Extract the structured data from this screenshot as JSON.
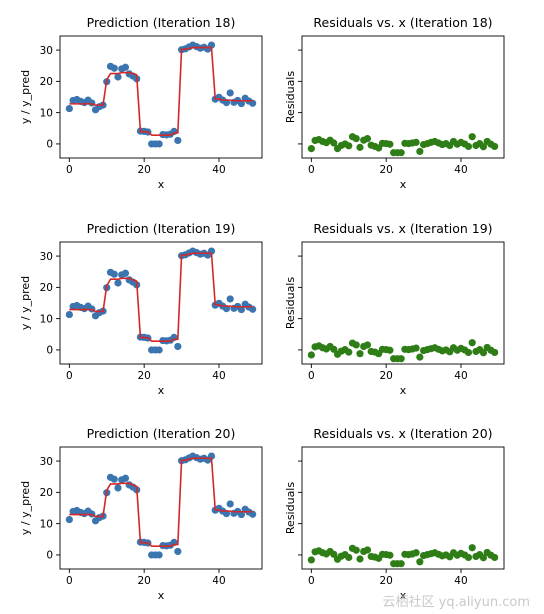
{
  "colors": {
    "points": "#3b75af",
    "prediction_line": "#d62728",
    "residual_points": "#2e7d16",
    "axis": "#000000",
    "background": "#ffffff"
  },
  "watermark": "云栖社区 yq.aliyun.com",
  "chart_data": [
    {
      "type": "line",
      "title": "Prediction (Iteration 18)",
      "xlabel": "x",
      "ylabel": "y / y_pred",
      "xlim": [
        -2.5,
        51.5
      ],
      "ylim": [
        -4.5,
        34.5
      ],
      "xticks": [
        0,
        20,
        40
      ],
      "yticks": [
        0,
        10,
        20,
        30
      ],
      "grid": false,
      "x": [
        0,
        1,
        2,
        3,
        4,
        5,
        6,
        7,
        8,
        9,
        10,
        11,
        12,
        13,
        14,
        15,
        16,
        17,
        18,
        19,
        20,
        21,
        22,
        23,
        24,
        25,
        26,
        27,
        28,
        29,
        30,
        31,
        32,
        33,
        34,
        35,
        36,
        37,
        38,
        39,
        40,
        41,
        42,
        43,
        44,
        45,
        46,
        47,
        48,
        49
      ],
      "series": [
        {
          "role": "scatter",
          "values": [
            11.3,
            13.9,
            14.2,
            13.6,
            13.2,
            14.0,
            13.1,
            10.9,
            11.9,
            12.4,
            19.9,
            24.8,
            24.2,
            21.4,
            24.0,
            24.5,
            22.4,
            21.7,
            20.8,
            4.1,
            4.0,
            3.8,
            0.0,
            0.0,
            0.0,
            3.0,
            2.9,
            3.1,
            4.0,
            1.1,
            30.1,
            30.4,
            31.0,
            31.6,
            31.1,
            30.6,
            30.9,
            30.3,
            31.6,
            14.3,
            14.9,
            14.0,
            13.2,
            16.3,
            13.3,
            13.9,
            12.9,
            14.6,
            13.7,
            13.0
          ]
        },
        {
          "role": "prediction",
          "values": [
            12.8,
            12.8,
            12.8,
            12.8,
            12.8,
            12.8,
            12.8,
            12.4,
            12.4,
            12.4,
            20.5,
            22.5,
            22.5,
            22.5,
            22.8,
            22.8,
            22.8,
            22.5,
            22.1,
            3.9,
            3.9,
            3.9,
            2.8,
            2.8,
            2.8,
            2.8,
            2.8,
            2.8,
            3.5,
            3.5,
            30.3,
            30.3,
            30.5,
            30.8,
            30.8,
            30.8,
            30.8,
            30.8,
            30.8,
            14.4,
            14.4,
            14.0,
            14.0,
            14.0,
            13.8,
            13.8,
            13.8,
            13.8,
            13.8,
            13.8
          ]
        }
      ]
    },
    {
      "type": "scatter",
      "title": "Residuals vs. x (Iteration 18)",
      "xlabel": "x",
      "ylabel": "Residuals",
      "xlim": [
        -2.5,
        51.5
      ],
      "ylim": [
        -4.5,
        34.5
      ],
      "xticks": [
        0,
        20,
        40
      ],
      "ytick_labels_visible": false,
      "grid": false,
      "x": [
        0,
        1,
        2,
        3,
        4,
        5,
        6,
        7,
        8,
        9,
        10,
        11,
        12,
        13,
        14,
        15,
        16,
        17,
        18,
        19,
        20,
        21,
        22,
        23,
        24,
        25,
        26,
        27,
        28,
        29,
        30,
        31,
        32,
        33,
        34,
        35,
        36,
        37,
        38,
        39,
        40,
        41,
        42,
        43,
        44,
        45,
        46,
        47,
        48,
        49
      ],
      "values": [
        -1.5,
        1.1,
        1.4,
        0.8,
        0.4,
        1.2,
        0.3,
        -1.5,
        -0.5,
        0.0,
        -0.6,
        2.3,
        1.7,
        -1.1,
        1.2,
        1.7,
        -0.4,
        -0.8,
        -1.3,
        0.2,
        0.1,
        -0.1,
        -2.8,
        -2.8,
        -2.8,
        0.2,
        0.1,
        0.3,
        0.5,
        -2.4,
        -0.2,
        0.1,
        0.5,
        0.8,
        0.3,
        -0.2,
        0.1,
        -0.5,
        0.8,
        -0.1,
        0.5,
        0.0,
        -0.8,
        2.3,
        -0.5,
        0.1,
        -0.9,
        0.8,
        -0.1,
        -0.8
      ]
    },
    {
      "type": "line",
      "title": "Prediction (Iteration 19)",
      "xlabel": "x",
      "ylabel": "y / y_pred",
      "xlim": [
        -2.5,
        51.5
      ],
      "ylim": [
        -4.5,
        34.5
      ],
      "xticks": [
        0,
        20,
        40
      ],
      "yticks": [
        0,
        10,
        20,
        30
      ],
      "grid": false,
      "x": [
        0,
        1,
        2,
        3,
        4,
        5,
        6,
        7,
        8,
        9,
        10,
        11,
        12,
        13,
        14,
        15,
        16,
        17,
        18,
        19,
        20,
        21,
        22,
        23,
        24,
        25,
        26,
        27,
        28,
        29,
        30,
        31,
        32,
        33,
        34,
        35,
        36,
        37,
        38,
        39,
        40,
        41,
        42,
        43,
        44,
        45,
        46,
        47,
        48,
        49
      ],
      "series": [
        {
          "role": "scatter",
          "values": [
            11.3,
            13.9,
            14.2,
            13.6,
            13.2,
            14.0,
            13.1,
            10.9,
            11.9,
            12.4,
            19.9,
            24.8,
            24.2,
            21.4,
            24.0,
            24.5,
            22.4,
            21.7,
            20.8,
            4.1,
            4.0,
            3.8,
            0.0,
            0.0,
            0.0,
            3.0,
            2.9,
            3.1,
            4.0,
            1.1,
            30.1,
            30.4,
            31.0,
            31.6,
            31.1,
            30.6,
            30.9,
            30.3,
            31.6,
            14.3,
            14.9,
            14.0,
            13.2,
            16.3,
            13.3,
            13.9,
            12.9,
            14.6,
            13.7,
            13.0
          ]
        },
        {
          "role": "prediction",
          "values": [
            12.9,
            12.9,
            12.9,
            12.9,
            12.9,
            12.9,
            12.9,
            12.3,
            12.3,
            12.3,
            20.6,
            22.6,
            22.6,
            22.6,
            22.9,
            22.9,
            22.9,
            22.4,
            22.0,
            3.9,
            3.9,
            3.9,
            2.8,
            2.8,
            2.8,
            2.8,
            2.8,
            2.8,
            3.4,
            3.4,
            30.3,
            30.3,
            30.6,
            30.9,
            30.9,
            30.9,
            30.9,
            30.9,
            30.9,
            14.4,
            14.4,
            14.0,
            14.0,
            14.0,
            13.8,
            13.8,
            13.8,
            13.8,
            13.8,
            13.8
          ]
        }
      ]
    },
    {
      "type": "scatter",
      "title": "Residuals vs. x (Iteration 19)",
      "xlabel": "x",
      "ylabel": "Residuals",
      "xlim": [
        -2.5,
        51.5
      ],
      "ylim": [
        -4.5,
        34.5
      ],
      "xticks": [
        0,
        20,
        40
      ],
      "ytick_labels_visible": false,
      "grid": false,
      "x": [
        0,
        1,
        2,
        3,
        4,
        5,
        6,
        7,
        8,
        9,
        10,
        11,
        12,
        13,
        14,
        15,
        16,
        17,
        18,
        19,
        20,
        21,
        22,
        23,
        24,
        25,
        26,
        27,
        28,
        29,
        30,
        31,
        32,
        33,
        34,
        35,
        36,
        37,
        38,
        39,
        40,
        41,
        42,
        43,
        44,
        45,
        46,
        47,
        48,
        49
      ],
      "values": [
        -1.6,
        1.0,
        1.3,
        0.7,
        0.3,
        1.1,
        0.2,
        -1.4,
        -0.4,
        0.1,
        -0.7,
        2.2,
        1.6,
        -1.2,
        1.1,
        1.6,
        -0.5,
        -0.7,
        -1.2,
        0.2,
        0.1,
        -0.1,
        -2.8,
        -2.8,
        -2.8,
        0.2,
        0.1,
        0.3,
        0.6,
        -2.3,
        -0.2,
        0.1,
        0.4,
        0.7,
        0.2,
        -0.3,
        0.0,
        -0.6,
        0.7,
        -0.1,
        0.5,
        0.0,
        -0.8,
        2.3,
        -0.5,
        0.1,
        -0.9,
        0.8,
        -0.1,
        -0.8
      ]
    },
    {
      "type": "line",
      "title": "Prediction (Iteration 20)",
      "xlabel": "x",
      "ylabel": "y / y_pred",
      "xlim": [
        -2.5,
        51.5
      ],
      "ylim": [
        -4.5,
        34.5
      ],
      "xticks": [
        0,
        20,
        40
      ],
      "yticks": [
        0,
        10,
        20,
        30
      ],
      "grid": false,
      "x": [
        0,
        1,
        2,
        3,
        4,
        5,
        6,
        7,
        8,
        9,
        10,
        11,
        12,
        13,
        14,
        15,
        16,
        17,
        18,
        19,
        20,
        21,
        22,
        23,
        24,
        25,
        26,
        27,
        28,
        29,
        30,
        31,
        32,
        33,
        34,
        35,
        36,
        37,
        38,
        39,
        40,
        41,
        42,
        43,
        44,
        45,
        46,
        47,
        48,
        49
      ],
      "series": [
        {
          "role": "scatter",
          "values": [
            11.3,
            13.9,
            14.2,
            13.6,
            13.2,
            14.0,
            13.1,
            10.9,
            11.9,
            12.4,
            19.9,
            24.8,
            24.2,
            21.4,
            24.0,
            24.5,
            22.4,
            21.7,
            20.8,
            4.1,
            4.0,
            3.8,
            0.0,
            0.0,
            0.0,
            3.0,
            2.9,
            3.1,
            4.0,
            1.1,
            30.1,
            30.4,
            31.0,
            31.6,
            31.1,
            30.6,
            30.9,
            30.3,
            31.6,
            14.3,
            14.9,
            14.0,
            13.2,
            16.3,
            13.3,
            13.9,
            12.9,
            14.6,
            13.7,
            13.0
          ]
        },
        {
          "role": "prediction",
          "values": [
            12.9,
            12.9,
            12.9,
            12.9,
            12.9,
            12.9,
            12.9,
            12.3,
            12.3,
            12.3,
            20.7,
            22.7,
            22.7,
            22.7,
            22.9,
            22.9,
            22.9,
            22.4,
            21.9,
            3.9,
            3.9,
            3.9,
            2.8,
            2.8,
            2.8,
            2.8,
            2.8,
            2.8,
            3.3,
            3.3,
            30.3,
            30.3,
            30.6,
            30.9,
            30.9,
            30.9,
            30.9,
            30.9,
            30.9,
            14.4,
            14.4,
            14.0,
            14.0,
            14.0,
            13.8,
            13.8,
            13.8,
            13.8,
            13.8,
            13.8
          ]
        }
      ]
    },
    {
      "type": "scatter",
      "title": "Residuals vs. x (Iteration 20)",
      "xlabel": "x",
      "ylabel": "Residuals",
      "xlim": [
        -2.5,
        51.5
      ],
      "ylim": [
        -4.5,
        34.5
      ],
      "xticks": [
        0,
        20,
        40
      ],
      "ytick_labels_visible": false,
      "grid": false,
      "x": [
        0,
        1,
        2,
        3,
        4,
        5,
        6,
        7,
        8,
        9,
        10,
        11,
        12,
        13,
        14,
        15,
        16,
        17,
        18,
        19,
        20,
        21,
        22,
        23,
        24,
        25,
        26,
        27,
        28,
        29,
        30,
        31,
        32,
        33,
        34,
        35,
        36,
        37,
        38,
        39,
        40,
        41,
        42,
        43,
        44,
        45,
        46,
        47,
        48,
        49
      ],
      "values": [
        -1.6,
        1.0,
        1.3,
        0.7,
        0.3,
        1.1,
        0.2,
        -1.4,
        -0.4,
        0.1,
        -0.8,
        2.1,
        1.5,
        -1.3,
        1.1,
        1.6,
        -0.5,
        -0.7,
        -1.1,
        0.2,
        0.1,
        -0.1,
        -2.8,
        -2.8,
        -2.8,
        0.2,
        0.1,
        0.3,
        0.7,
        -2.2,
        -0.2,
        0.1,
        0.4,
        0.7,
        0.2,
        -0.3,
        0.0,
        -0.6,
        0.7,
        -0.1,
        0.5,
        0.0,
        -0.8,
        2.3,
        -0.5,
        0.1,
        -0.9,
        0.8,
        -0.1,
        -0.8
      ]
    }
  ]
}
